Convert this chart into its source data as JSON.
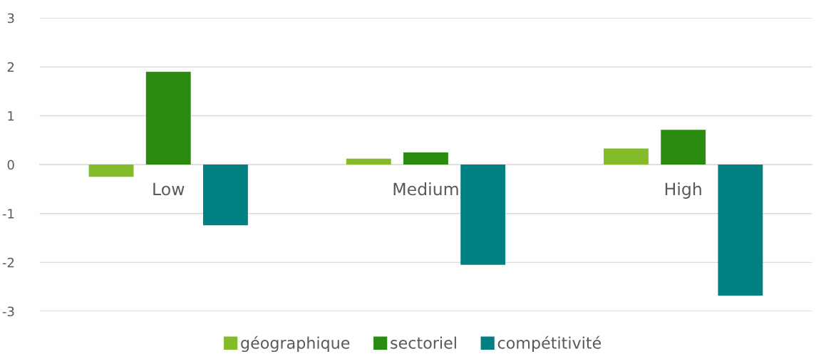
{
  "chart_data": {
    "type": "bar",
    "categories": [
      "Low",
      "Medium",
      "High"
    ],
    "series": [
      {
        "name": "géographique",
        "color": "#84bb29",
        "values": [
          -0.25,
          0.12,
          0.33
        ]
      },
      {
        "name": "sectoriel",
        "color": "#2b8a10",
        "values": [
          1.9,
          0.25,
          0.71
        ]
      },
      {
        "name": "compétitivité",
        "color": "#008080",
        "values": [
          -1.24,
          -2.05,
          -2.68
        ]
      }
    ],
    "ylim": [
      -3,
      3
    ],
    "yticks": [
      {
        "value": -3,
        "label": "-3"
      },
      {
        "value": -2,
        "label": "-2"
      },
      {
        "value": -1,
        "label": "-1"
      },
      0,
      1,
      2,
      3
    ],
    "grid": "y",
    "legend": "bottom"
  }
}
